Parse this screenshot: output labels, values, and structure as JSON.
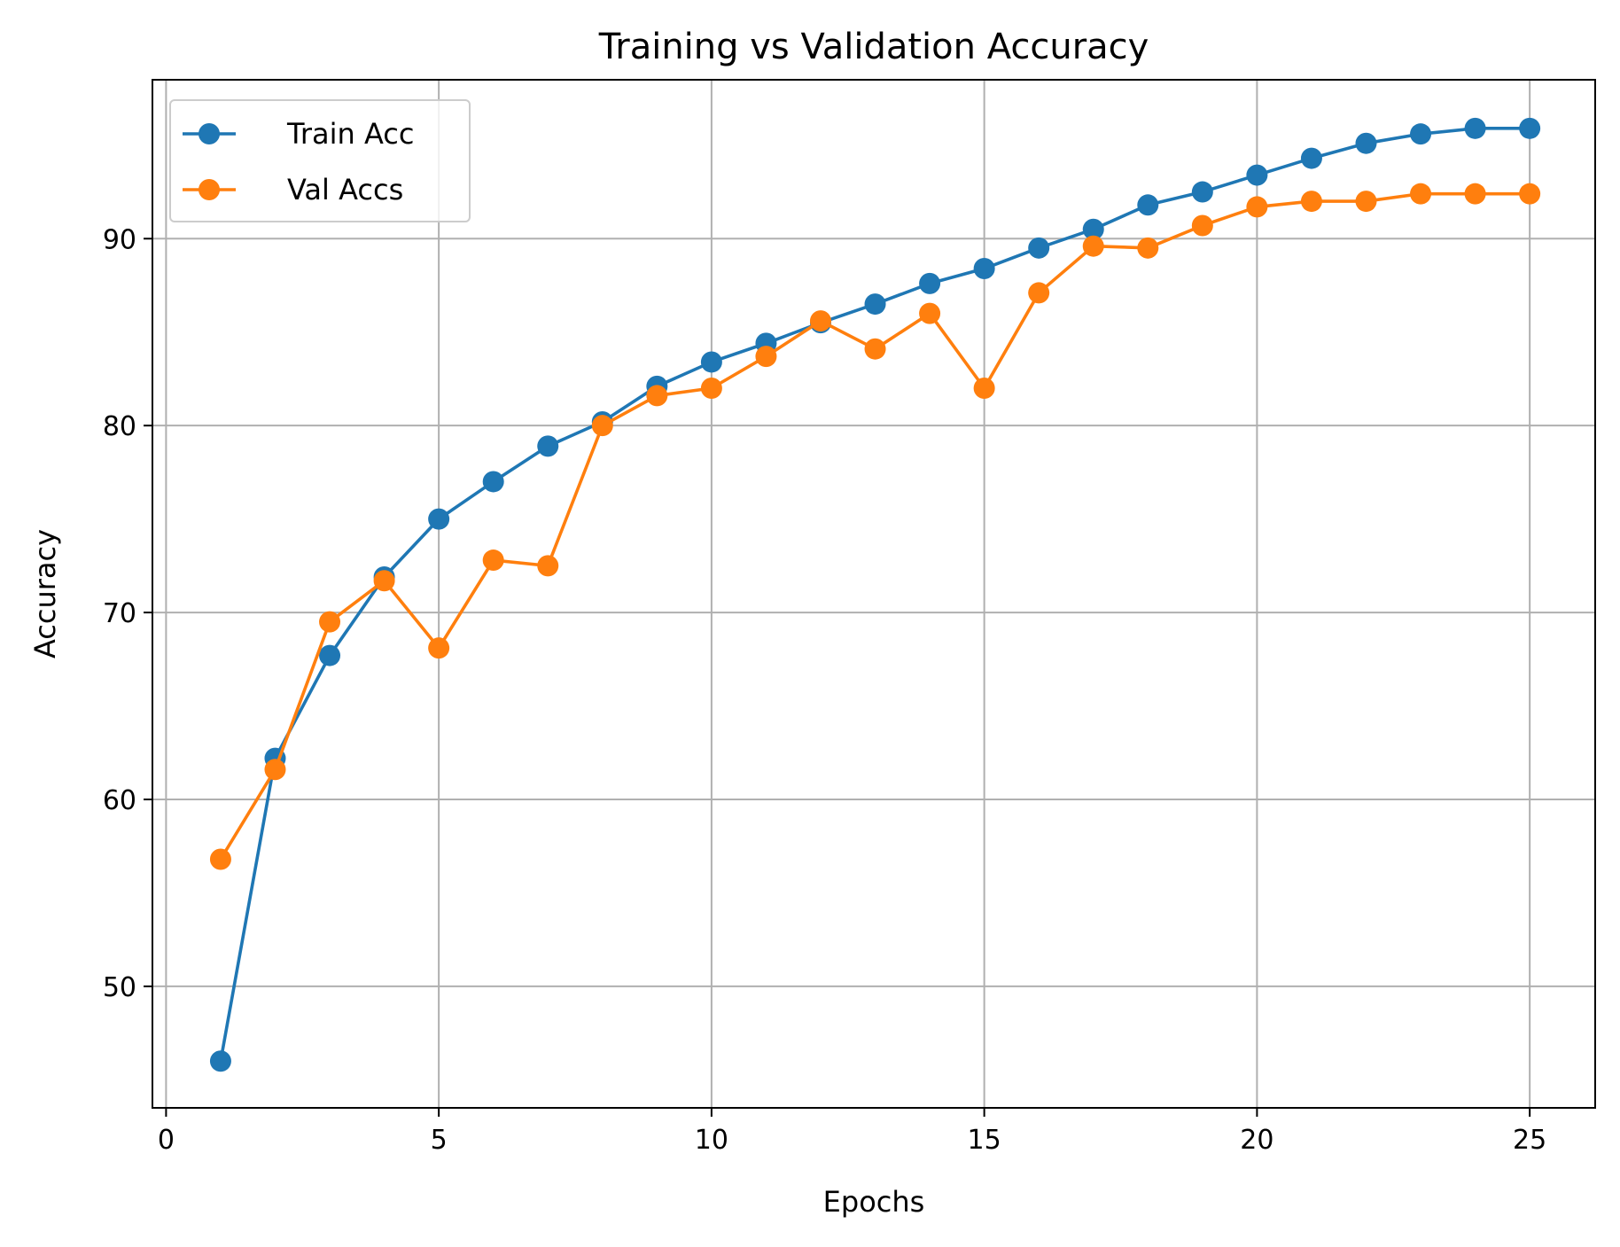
{
  "chart_data": {
    "type": "line",
    "title": "Training vs Validation Accuracy",
    "xlabel": "Epochs",
    "ylabel": "Accuracy",
    "xlim": [
      -0.25,
      26.2
    ],
    "ylim": [
      43.5,
      98.5
    ],
    "xticks": [
      0,
      5,
      10,
      15,
      20,
      25
    ],
    "yticks": [
      50,
      60,
      70,
      80,
      90
    ],
    "x_tick_labels": [
      "0",
      "5",
      "10",
      "15",
      "20",
      "25"
    ],
    "y_tick_labels": [
      "50",
      "60",
      "70",
      "80",
      "90"
    ],
    "grid": true,
    "legend_position": "upper left",
    "x": [
      1,
      2,
      3,
      4,
      5,
      6,
      7,
      8,
      9,
      10,
      11,
      12,
      13,
      14,
      15,
      16,
      17,
      18,
      19,
      20,
      21,
      22,
      23,
      24,
      25
    ],
    "series": [
      {
        "name": "Train Acc",
        "color": "#1f77b4",
        "marker": "circle",
        "values": [
          46.0,
          62.2,
          67.7,
          71.9,
          75.0,
          77.0,
          78.9,
          80.2,
          82.1,
          83.4,
          84.4,
          85.5,
          86.5,
          87.6,
          88.4,
          89.5,
          90.5,
          91.8,
          92.5,
          93.4,
          94.3,
          95.1,
          95.6,
          95.9,
          95.9
        ]
      },
      {
        "name": "Val Accs",
        "color": "#ff7f0e",
        "marker": "circle",
        "values": [
          56.8,
          61.6,
          69.5,
          71.7,
          68.1,
          72.8,
          72.5,
          80.0,
          81.6,
          82.0,
          83.7,
          85.6,
          84.1,
          86.0,
          82.0,
          87.1,
          89.6,
          89.5,
          90.7,
          91.7,
          92.0,
          92.0,
          92.4,
          92.4,
          92.4
        ]
      }
    ]
  }
}
